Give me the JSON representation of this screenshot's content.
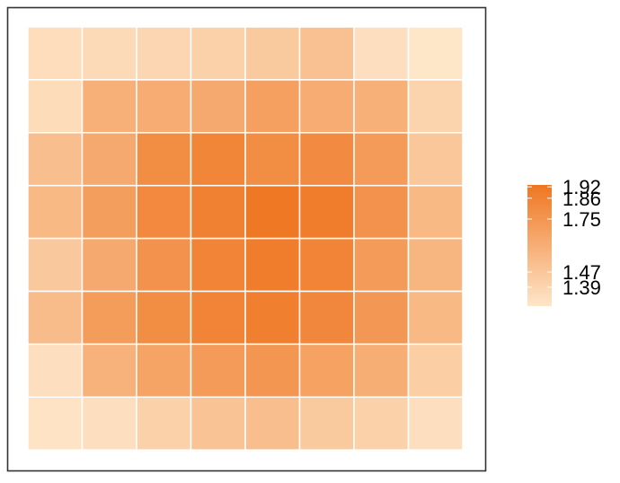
{
  "chart_data": {
    "type": "heatmap",
    "title": "",
    "xlabel": "",
    "ylabel": "",
    "rows": 8,
    "cols": 8,
    "values": [
      [
        1.34,
        1.36,
        1.38,
        1.41,
        1.45,
        1.5,
        1.33,
        1.29
      ],
      [
        1.35,
        1.6,
        1.62,
        1.64,
        1.69,
        1.62,
        1.6,
        1.4
      ],
      [
        1.52,
        1.64,
        1.8,
        1.84,
        1.8,
        1.81,
        1.72,
        1.47
      ],
      [
        1.55,
        1.7,
        1.82,
        1.87,
        1.92,
        1.89,
        1.77,
        1.55
      ],
      [
        1.46,
        1.64,
        1.77,
        1.85,
        1.89,
        1.85,
        1.72,
        1.57
      ],
      [
        1.53,
        1.71,
        1.8,
        1.85,
        1.88,
        1.83,
        1.74,
        1.55
      ],
      [
        1.33,
        1.59,
        1.67,
        1.72,
        1.75,
        1.68,
        1.61,
        1.43
      ],
      [
        1.31,
        1.33,
        1.41,
        1.49,
        1.52,
        1.45,
        1.41,
        1.33
      ]
    ],
    "legend": {
      "position": "right",
      "ticks": [
        "1.92",
        "1.86",
        "1.75",
        "1.47",
        "1.39"
      ],
      "tick_values": [
        1.92,
        1.86,
        1.75,
        1.47,
        1.39
      ],
      "min_value": 1.29,
      "max_value": 1.93
    },
    "colors": {
      "low": "#fee6c9",
      "high": "#ef7622",
      "tile_border": "#ffffff",
      "panel_border": "#333333"
    }
  }
}
